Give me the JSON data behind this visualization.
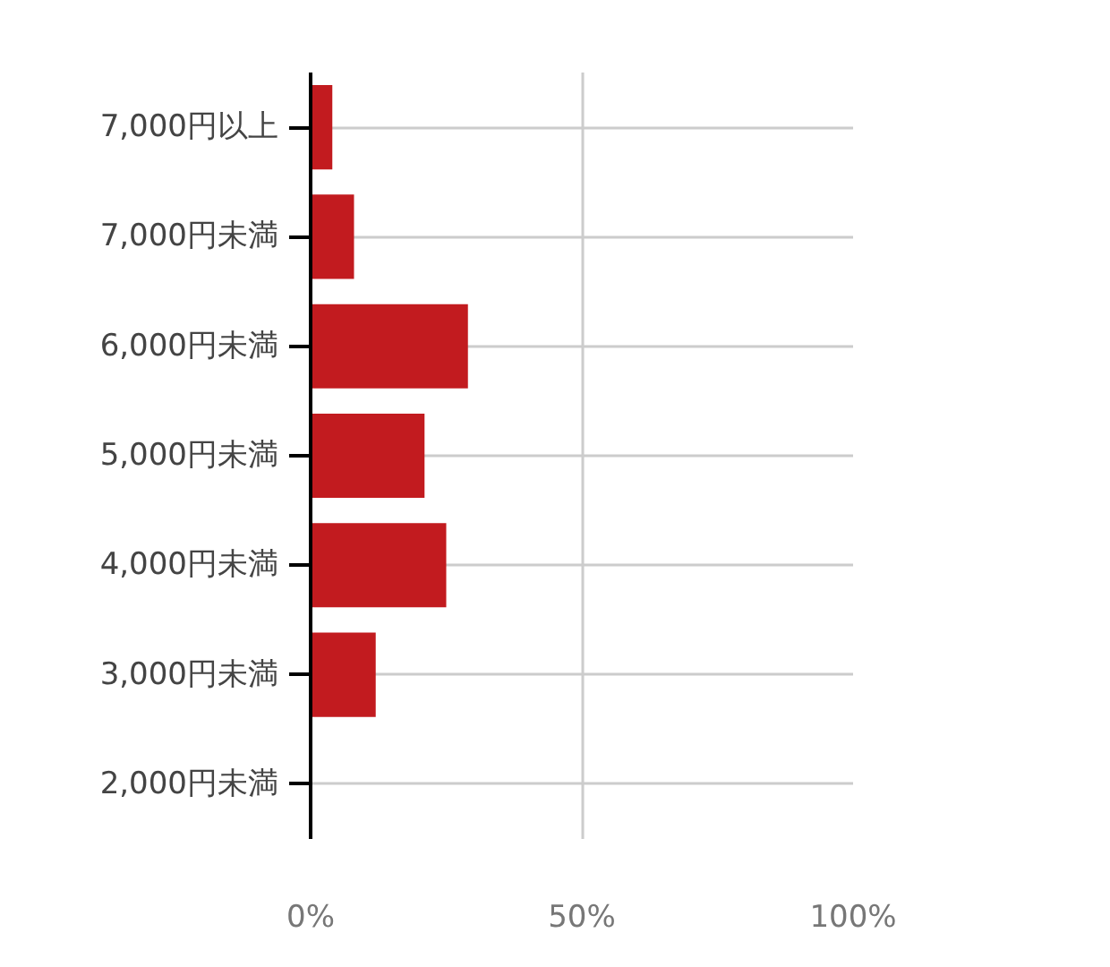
{
  "chart_data": {
    "type": "bar",
    "orientation": "horizontal",
    "categories": [
      "7,000円以上",
      "7,000円未満",
      "6,000円未満",
      "5,000円未満",
      "4,000円未満",
      "3,000円未満",
      "2,000円未満"
    ],
    "values": [
      4,
      8,
      29,
      21,
      25,
      12,
      0
    ],
    "color": "#c21b1f",
    "xlim": [
      0,
      100
    ],
    "xticks": [
      {
        "value": 0,
        "label": "0%"
      },
      {
        "value": 50,
        "label": "50%"
      },
      {
        "value": 100,
        "label": "100%"
      }
    ],
    "grid": true
  }
}
